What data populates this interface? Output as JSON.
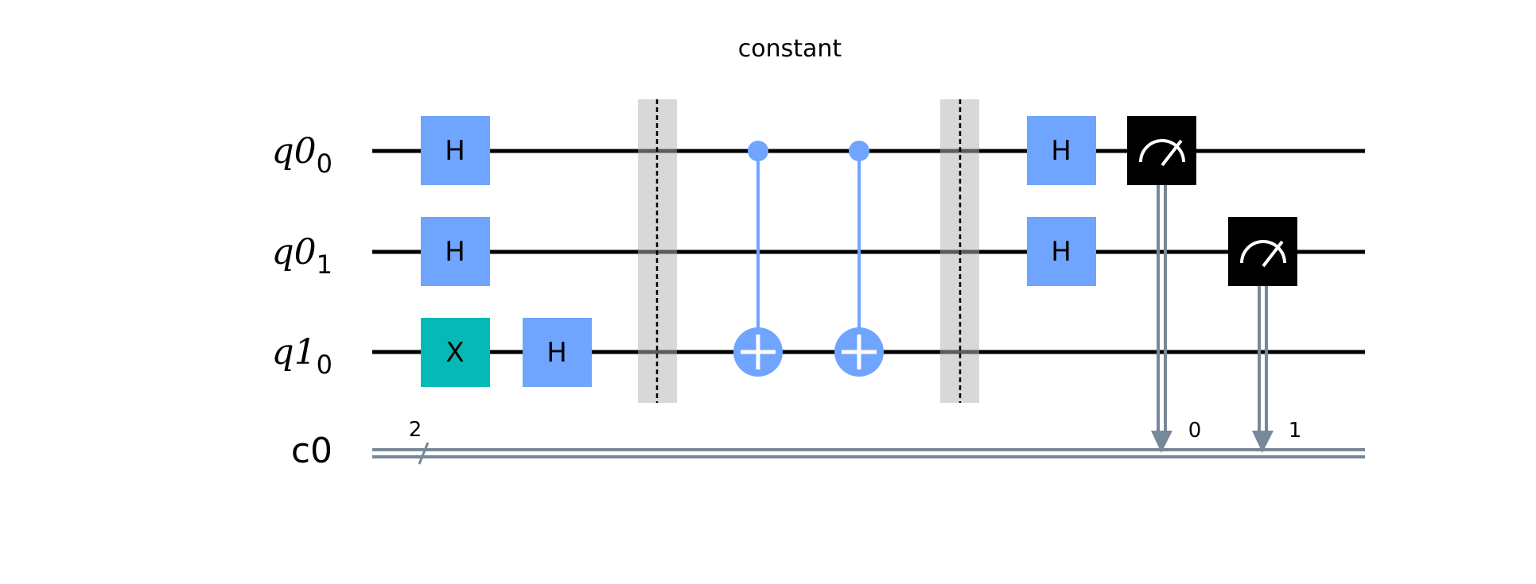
{
  "title": "constant",
  "wires": {
    "q0_0": {
      "name": "q0",
      "index": "0"
    },
    "q0_1": {
      "name": "q0",
      "index": "1"
    },
    "q1_0": {
      "name": "q1",
      "index": "0"
    },
    "c0": {
      "name": "c0",
      "width": "2"
    }
  },
  "gates": {
    "h_q00_a": "H",
    "h_q01_a": "H",
    "x_q10": "X",
    "h_q10": "H",
    "h_q00_b": "H",
    "h_q01_b": "H"
  },
  "measure_bits": {
    "m0": "0",
    "m1": "1"
  },
  "colors": {
    "h_gate": "#6fa4ff",
    "x_gate": "#05bab6",
    "cx": "#6fa4ff",
    "measure": "#000000",
    "classical_wire": "#778899",
    "barrier": "#d6d6d6"
  }
}
